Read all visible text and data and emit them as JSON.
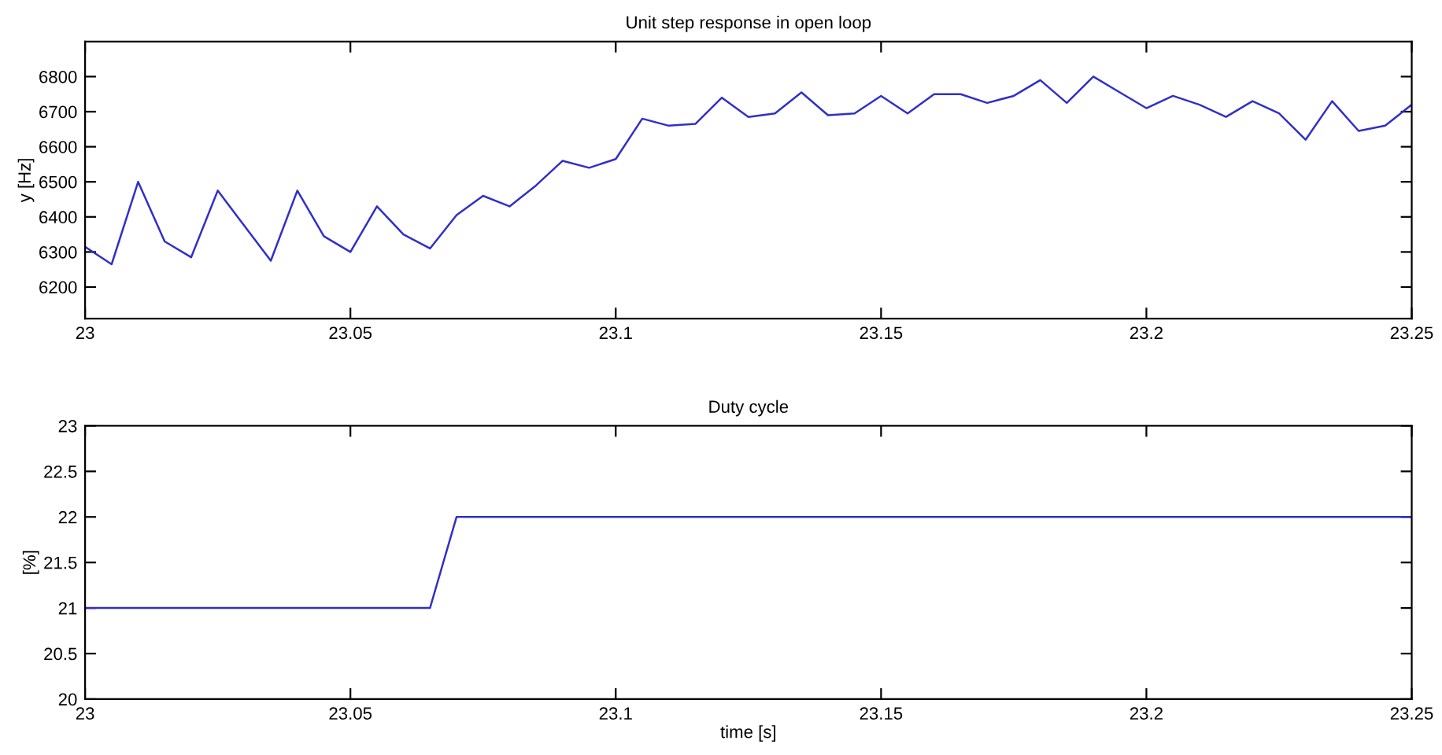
{
  "chart_data": [
    {
      "type": "line",
      "title": "Unit step response in open loop",
      "ylabel": "y [Hz]",
      "x": [
        23.0,
        23.005,
        23.01,
        23.015,
        23.02,
        23.025,
        23.03,
        23.035,
        23.04,
        23.045,
        23.05,
        23.055,
        23.06,
        23.065,
        23.07,
        23.075,
        23.08,
        23.085,
        23.09,
        23.095,
        23.1,
        23.105,
        23.11,
        23.115,
        23.12,
        23.125,
        23.13,
        23.135,
        23.14,
        23.145,
        23.15,
        23.155,
        23.16,
        23.165,
        23.17,
        23.175,
        23.18,
        23.185,
        23.19,
        23.195,
        23.2,
        23.205,
        23.21,
        23.215,
        23.22,
        23.225,
        23.23,
        23.235,
        23.24,
        23.245,
        23.25
      ],
      "series": [
        {
          "color": "#3030c8",
          "values": [
            6315,
            6265,
            6500,
            6330,
            6285,
            6475,
            6375,
            6275,
            6475,
            6345,
            6300,
            6430,
            6350,
            6310,
            6405,
            6460,
            6430,
            6490,
            6560,
            6540,
            6565,
            6680,
            6660,
            6665,
            6740,
            6685,
            6695,
            6755,
            6690,
            6695,
            6745,
            6695,
            6750,
            6750,
            6725,
            6745,
            6790,
            6725,
            6800,
            6755,
            6710,
            6745,
            6720,
            6685,
            6730,
            6695,
            6620,
            6730,
            6645,
            6660,
            6720
          ]
        }
      ],
      "xlim": [
        23.0,
        23.25
      ],
      "xticks": [
        23,
        23.05,
        23.1,
        23.15,
        23.2,
        23.25
      ],
      "ylim": [
        6110,
        6900
      ],
      "yticks": [
        6200,
        6300,
        6400,
        6500,
        6600,
        6700,
        6800
      ],
      "grid": false,
      "legend": false
    },
    {
      "type": "line",
      "title": "Duty cycle",
      "xlabel": "time [s]",
      "ylabel": "[%]",
      "x": [
        23.0,
        23.065,
        23.07,
        23.25
      ],
      "series": [
        {
          "color": "#3030c8",
          "values": [
            21,
            21,
            22,
            22
          ]
        }
      ],
      "xlim": [
        23.0,
        23.25
      ],
      "xticks": [
        23,
        23.05,
        23.1,
        23.15,
        23.2,
        23.25
      ],
      "ylim": [
        20,
        23
      ],
      "yticks": [
        20,
        20.5,
        21,
        21.5,
        22,
        22.5,
        23
      ],
      "grid": false,
      "legend": false
    }
  ]
}
